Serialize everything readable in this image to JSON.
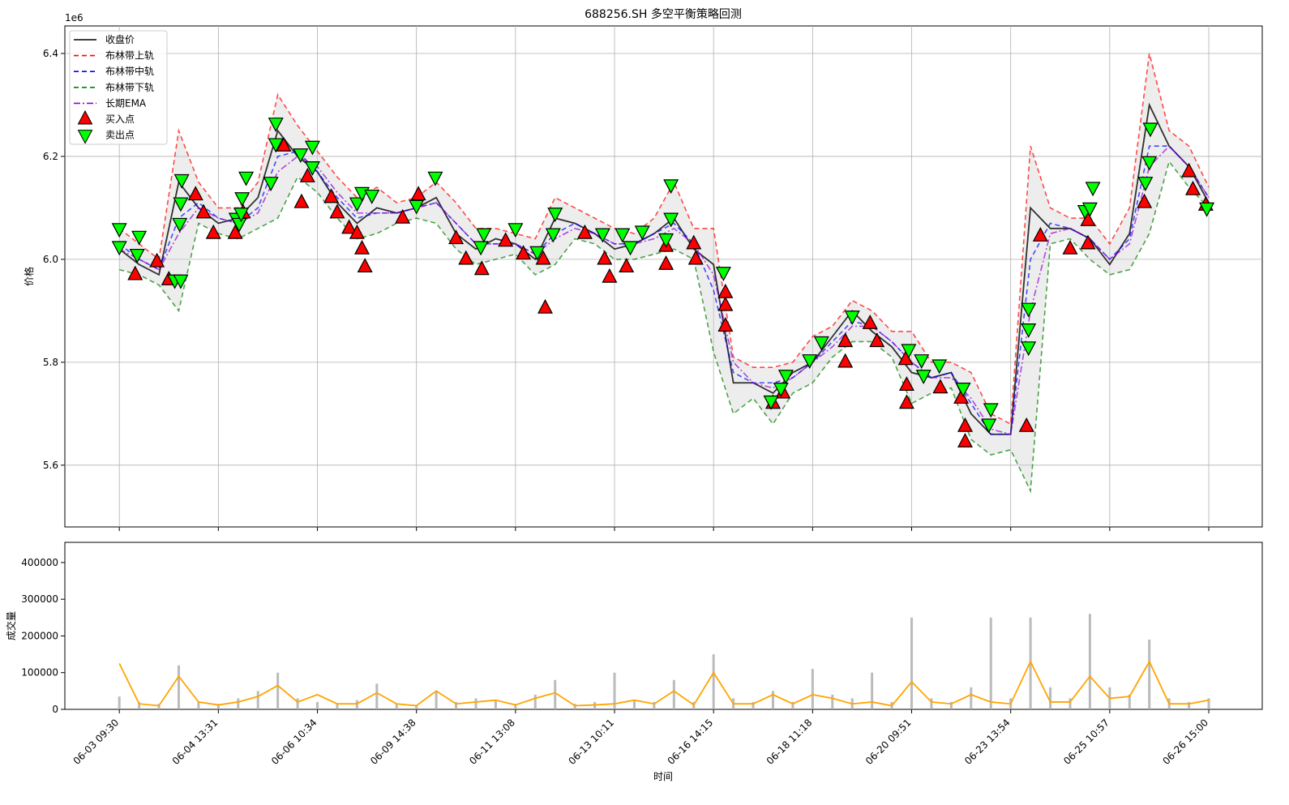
{
  "chart_data": [
    {
      "type": "line",
      "title": "688256.SH 多空平衡策略回测",
      "y_label": "价格",
      "y_offset_label": "1e6",
      "xlim": [
        -55,
        1154
      ],
      "ylim": [
        5.48,
        6.4535
      ],
      "yticks": [
        5.6,
        5.8,
        {
          "value": 6,
          "label": "6.0"
        },
        6.2,
        6.4
      ],
      "grid": true,
      "legend": "upper left",
      "x": [
        0,
        20,
        40,
        60,
        80,
        100,
        120,
        140,
        160,
        180,
        200,
        220,
        240,
        260,
        280,
        300,
        320,
        340,
        360,
        380,
        400,
        420,
        440,
        460,
        480,
        500,
        520,
        540,
        560,
        580,
        600,
        620,
        640,
        660,
        680,
        700,
        720,
        740,
        760,
        780,
        800,
        820,
        840,
        860,
        880,
        900,
        920,
        940,
        960,
        980,
        1000,
        1020,
        1040,
        1060,
        1080,
        1100
      ],
      "series": [
        {
          "name": "收盘价",
          "color": "#000000",
          "style": "solid",
          "values": [
            6.02,
            5.99,
            5.97,
            6.15,
            6.1,
            6.07,
            6.08,
            6.12,
            6.25,
            6.2,
            6.17,
            6.11,
            6.07,
            6.1,
            6.09,
            6.1,
            6.12,
            6.05,
            6.02,
            6.04,
            6.03,
            6.0,
            6.08,
            6.07,
            6.05,
            6.02,
            6.03,
            6.05,
            6.08,
            6.02,
            5.99,
            5.76,
            5.76,
            5.74,
            5.78,
            5.8,
            5.85,
            5.9,
            5.86,
            5.83,
            5.78,
            5.77,
            5.78,
            5.7,
            5.66,
            5.66,
            6.1,
            6.06,
            6.06,
            6.04,
            5.99,
            6.05,
            6.3,
            6.22,
            6.18,
            6.11
          ]
        },
        {
          "name": "布林带上轨",
          "color": "#ff0000",
          "style": "dash",
          "values": [
            6.06,
            6.03,
            6.0,
            6.25,
            6.15,
            6.1,
            6.1,
            6.15,
            6.32,
            6.26,
            6.21,
            6.16,
            6.12,
            6.14,
            6.11,
            6.12,
            6.15,
            6.11,
            6.06,
            6.06,
            6.05,
            6.04,
            6.12,
            6.1,
            6.08,
            6.06,
            6.05,
            6.08,
            6.15,
            6.06,
            6.06,
            5.81,
            5.79,
            5.79,
            5.8,
            5.85,
            5.87,
            5.92,
            5.9,
            5.86,
            5.86,
            5.8,
            5.8,
            5.78,
            5.7,
            5.68,
            6.22,
            6.1,
            6.08,
            6.08,
            6.03,
            6.1,
            6.4,
            6.25,
            6.22,
            6.14
          ]
        },
        {
          "name": "布林带中轨",
          "color": "#0000ff",
          "style": "dash",
          "values": [
            6.03,
            6.0,
            5.98,
            6.08,
            6.11,
            6.08,
            6.07,
            6.1,
            6.2,
            6.21,
            6.17,
            6.12,
            6.08,
            6.09,
            6.09,
            6.1,
            6.11,
            6.07,
            6.03,
            6.03,
            6.03,
            6.01,
            6.05,
            6.07,
            6.05,
            6.03,
            6.03,
            6.05,
            6.07,
            6.03,
            5.94,
            5.78,
            5.76,
            5.76,
            5.77,
            5.8,
            5.84,
            5.88,
            5.87,
            5.84,
            5.8,
            5.77,
            5.78,
            5.72,
            5.66,
            5.66,
            6.0,
            6.07,
            6.06,
            6.04,
            6.0,
            6.04,
            6.22,
            6.22,
            6.18,
            6.12
          ]
        },
        {
          "name": "布林带下轨",
          "color": "#008000",
          "style": "dash",
          "values": [
            5.98,
            5.97,
            5.95,
            5.9,
            6.07,
            6.05,
            6.04,
            6.06,
            6.08,
            6.16,
            6.13,
            6.08,
            6.04,
            6.05,
            6.07,
            6.08,
            6.07,
            6.02,
            5.99,
            6.0,
            6.01,
            5.97,
            5.99,
            6.04,
            6.03,
            6.0,
            6.0,
            6.01,
            6.02,
            6.0,
            5.82,
            5.7,
            5.73,
            5.68,
            5.74,
            5.76,
            5.81,
            5.84,
            5.84,
            5.81,
            5.72,
            5.74,
            5.75,
            5.65,
            5.62,
            5.63,
            5.55,
            6.03,
            6.04,
            6.0,
            5.97,
            5.98,
            6.05,
            6.19,
            6.14,
            6.1
          ]
        },
        {
          "name": "长期EMA",
          "color": "#9400d3",
          "style": "dashdot",
          "values": [
            6.02,
            6.0,
            5.98,
            6.05,
            6.1,
            6.08,
            6.07,
            6.09,
            6.17,
            6.2,
            6.18,
            6.13,
            6.09,
            6.09,
            6.09,
            6.1,
            6.11,
            6.07,
            6.03,
            6.03,
            6.03,
            6.01,
            6.04,
            6.06,
            6.05,
            6.03,
            6.03,
            6.04,
            6.06,
            6.03,
            5.97,
            5.8,
            5.76,
            5.75,
            5.77,
            5.8,
            5.83,
            5.87,
            5.87,
            5.84,
            5.8,
            5.77,
            5.77,
            5.73,
            5.67,
            5.66,
            5.9,
            6.05,
            6.06,
            6.04,
            6.0,
            6.03,
            6.18,
            6.22,
            6.18,
            6.12
          ]
        },
        {
          "name": "买入点",
          "color": "#ff0000",
          "marker": "up",
          "x": [
            16,
            38,
            50,
            77,
            85,
            95,
            117,
            125,
            184,
            190,
            166,
            214,
            220,
            232,
            245,
            248,
            240,
            286,
            302,
            340,
            350,
            366,
            390,
            408,
            428,
            430,
            470,
            490,
            495,
            512,
            552,
            552,
            580,
            582,
            612,
            612,
            612,
            660,
            670,
            733,
            733,
            758,
            765,
            794,
            795,
            795,
            829,
            850,
            854,
            854,
            916,
            930,
            960,
            978,
            978,
            1035,
            1080,
            1084,
            1097
          ],
          "values": [
            5.97,
            5.995,
            5.96,
            6.125,
            6.09,
            6.05,
            6.05,
            6.09,
            6.11,
            6.16,
            6.22,
            6.12,
            6.09,
            6.06,
            6.02,
            5.985,
            6.05,
            6.08,
            6.125,
            6.04,
            6.0,
            5.98,
            6.035,
            6.01,
            6.0,
            5.905,
            6.05,
            6.0,
            5.965,
            5.985,
            6.025,
            5.99,
            6.03,
            6.0,
            5.935,
            5.91,
            5.87,
            5.72,
            5.74,
            5.84,
            5.8,
            5.875,
            5.84,
            5.805,
            5.755,
            5.72,
            5.75,
            5.73,
            5.675,
            5.645,
            5.675,
            6.045,
            6.02,
            6.075,
            6.03,
            6.11,
            6.17,
            6.135,
            6.105
          ]
        },
        {
          "name": "卖出点",
          "color": "#00ff00",
          "marker": "down",
          "x": [
            0,
            0,
            20,
            18,
            56,
            62,
            63,
            62,
            61,
            118,
            121,
            123,
            124,
            128,
            153,
            158,
            158,
            183,
            195,
            195,
            240,
            245,
            255,
            300,
            319,
            365,
            368,
            400,
            422,
            440,
            438,
            488,
            508,
            516,
            528,
            552,
            557,
            557,
            610,
            658,
            668,
            673,
            697,
            709,
            740,
            797,
            810,
            812,
            828,
            852,
            880,
            878,
            918,
            918,
            918,
            975,
            980,
            983,
            1036,
            1040,
            1041,
            1098
          ],
          "values": [
            6.06,
            6.025,
            6.045,
            6.01,
            5.96,
            5.96,
            6.155,
            6.11,
            6.07,
            6.08,
            6.07,
            6.09,
            6.12,
            6.16,
            6.15,
            6.265,
            6.225,
            6.205,
            6.22,
            6.18,
            6.11,
            6.13,
            6.125,
            6.105,
            6.16,
            6.025,
            6.05,
            6.06,
            6.015,
            6.09,
            6.05,
            6.05,
            6.05,
            6.025,
            6.055,
            6.04,
            6.145,
            6.08,
            5.975,
            5.725,
            5.75,
            5.775,
            5.805,
            5.84,
            5.89,
            5.825,
            5.805,
            5.775,
            5.795,
            5.75,
            5.71,
            5.68,
            5.905,
            5.865,
            5.83,
            6.095,
            6.1,
            6.14,
            6.15,
            6.19,
            6.255,
            6.1
          ]
        }
      ]
    },
    {
      "type": "bar",
      "x_label": "时间",
      "y_label": "成交量",
      "xlim": [
        -55,
        1154
      ],
      "ylim": [
        0,
        455000
      ],
      "xticks": [
        {
          "value": 0,
          "label": "06-03 09:30"
        },
        {
          "value": 100,
          "label": "06-04 13:31"
        },
        {
          "value": 200,
          "label": "06-06 10:34"
        },
        {
          "value": 300,
          "label": "06-09 14:38"
        },
        {
          "value": 400,
          "label": "06-11 13:08"
        },
        {
          "value": 500,
          "label": "06-13 10:11"
        },
        {
          "value": 600,
          "label": "06-16 14:15"
        },
        {
          "value": 700,
          "label": "06-18 11:18"
        },
        {
          "value": 800,
          "label": "06-20 09:51"
        },
        {
          "value": 900,
          "label": "06-23 13:54"
        },
        {
          "value": 1000,
          "label": "06-25 10:57"
        },
        {
          "value": 1100,
          "label": "06-26 15:00"
        }
      ],
      "yticks": [
        0,
        100000,
        200000,
        300000,
        400000
      ],
      "x": [
        0,
        20,
        40,
        60,
        80,
        100,
        120,
        140,
        160,
        180,
        200,
        220,
        240,
        260,
        280,
        300,
        320,
        340,
        360,
        380,
        400,
        420,
        440,
        460,
        480,
        500,
        520,
        540,
        560,
        580,
        600,
        620,
        640,
        660,
        680,
        700,
        720,
        740,
        760,
        780,
        800,
        820,
        840,
        860,
        880,
        900,
        920,
        940,
        960,
        980,
        1000,
        1020,
        1040,
        1060,
        1080,
        1100
      ],
      "series": [
        {
          "name": null,
          "color": "#aaaaaa",
          "values": [
            35000,
            20000,
            15000,
            120000,
            20000,
            15000,
            30000,
            50000,
            100000,
            30000,
            20000,
            15000,
            25000,
            70000,
            15000,
            12000,
            50000,
            20000,
            30000,
            25000,
            15000,
            40000,
            80000,
            15000,
            20000,
            100000,
            25000,
            20000,
            80000,
            20000,
            150000,
            30000,
            20000,
            50000,
            20000,
            110000,
            40000,
            30000,
            100000,
            20000,
            250000,
            30000,
            20000,
            60000,
            250000,
            30000,
            250000,
            60000,
            30000,
            260000,
            60000,
            40000,
            190000,
            30000,
            20000,
            30000
          ]
        },
        {
          "name": null,
          "color": "#ffa500",
          "style": "line",
          "values": [
            125000,
            15000,
            10000,
            90000,
            20000,
            12000,
            20000,
            35000,
            65000,
            20000,
            40000,
            15000,
            15000,
            45000,
            15000,
            10000,
            50000,
            15000,
            20000,
            25000,
            12000,
            30000,
            45000,
            10000,
            12000,
            15000,
            25000,
            15000,
            50000,
            12000,
            100000,
            15000,
            15000,
            40000,
            15000,
            40000,
            30000,
            15000,
            20000,
            10000,
            75000,
            20000,
            15000,
            40000,
            20000,
            15000,
            130000,
            20000,
            20000,
            90000,
            30000,
            35000,
            130000,
            15000,
            15000,
            25000
          ]
        }
      ]
    }
  ]
}
